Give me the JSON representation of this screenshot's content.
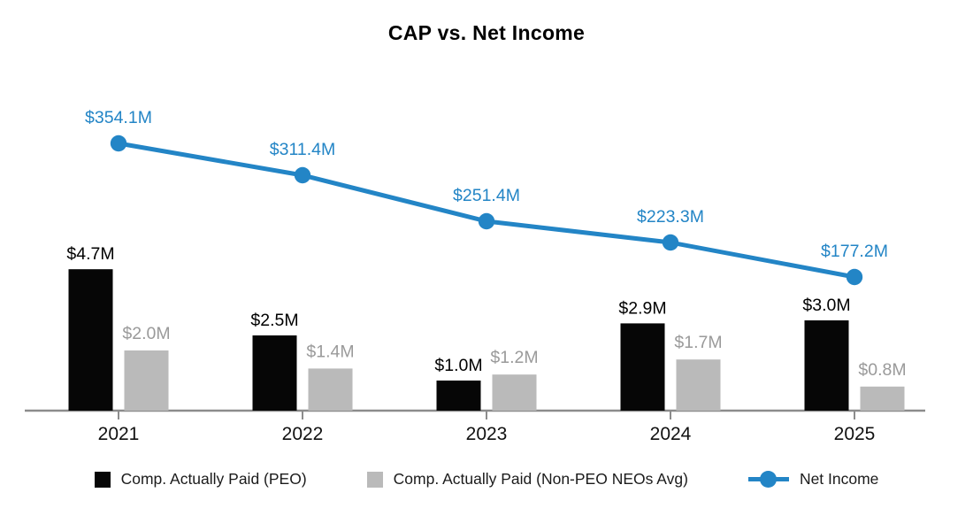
{
  "chart_data": {
    "type": "combo-bar-line",
    "title": "CAP vs. Net Income",
    "categories": [
      "2021",
      "2022",
      "2023",
      "2024",
      "2025"
    ],
    "series": [
      {
        "name": "Comp. Actually Paid (PEO)",
        "type": "bar",
        "color": "#060606",
        "label_color": "#000000",
        "values": [
          4.7,
          2.5,
          1.0,
          2.9,
          3.0
        ],
        "labels": [
          "$4.7M",
          "$2.5M",
          "$1.0M",
          "$2.9M",
          "$3.0M"
        ]
      },
      {
        "name": "Comp. Actually Paid (Non-PEO NEOs Avg)",
        "type": "bar",
        "color": "#bababa",
        "label_color": "#9a9a9a",
        "values": [
          2.0,
          1.4,
          1.2,
          1.7,
          0.8
        ],
        "labels": [
          "$2.0M",
          "$1.4M",
          "$1.2M",
          "$1.7M",
          "$0.8M"
        ]
      },
      {
        "name": "Net Income",
        "type": "line",
        "color": "#2385c6",
        "label_color": "#2385c6",
        "values": [
          354.1,
          311.4,
          251.4,
          223.3,
          177.2
        ],
        "labels": [
          "$354.1M",
          "$311.4M",
          "$251.4M",
          "$223.3M",
          "$177.2M"
        ]
      }
    ],
    "axis": {
      "color": "#8c8c8c",
      "tick_label_color": "#111111"
    },
    "grid": false,
    "legend_position": "bottom",
    "background": "#ffffff",
    "units": "USD millions"
  }
}
